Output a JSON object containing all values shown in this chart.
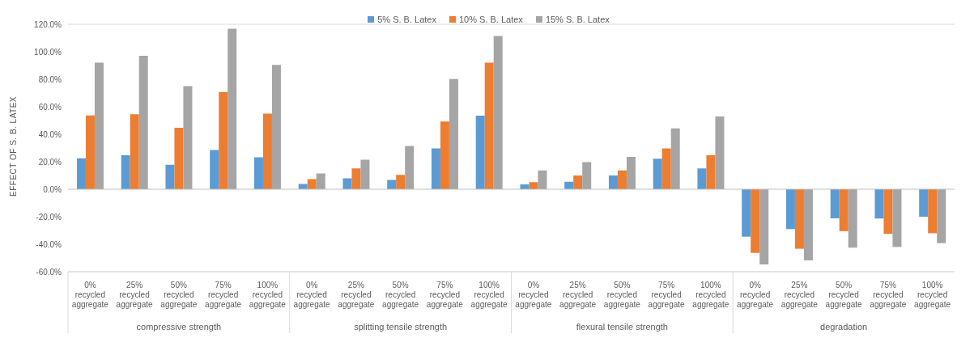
{
  "chart_data": {
    "type": "bar",
    "ylabel": "EFFECT OF S. B. LATEX",
    "categories": [
      "0% recycled aggregate",
      "25% recycled aggregate",
      "50% recycled aggregate",
      "75% recycled aggregate",
      "100% recycled aggregate",
      "0% recycled aggregate",
      "25% recycled aggregate",
      "50% recycled aggregate",
      "75% recycled aggregate",
      "100% recycled aggregate",
      "0% recycled aggregate",
      "25% recycled aggregate",
      "50% recycled aggregate",
      "75% recycled aggregate",
      "100% recycled aggregate",
      "0% recycled aggregate",
      "25% recycled aggregate",
      "50% recycled aggregate",
      "75% recycled aggregate",
      "100% recycled aggregate"
    ],
    "series": [
      {
        "name": "5% S. B. Latex",
        "color": "#5b9bd5",
        "values": [
          22.5,
          24.7,
          17.8,
          28.5,
          23.3,
          3.8,
          8,
          6.8,
          29.7,
          53.5,
          3.5,
          5.5,
          10,
          22.2,
          15.2,
          -34.5,
          -29,
          -21.2,
          -21.3,
          -20
        ]
      },
      {
        "name": "10% S. B. Latex",
        "color": "#ed7d31",
        "values": [
          53.7,
          54.5,
          44.7,
          70.7,
          55,
          7.3,
          15.2,
          10.5,
          49.2,
          92,
          5.2,
          10,
          13.7,
          29.7,
          24.7,
          -46.3,
          -43.3,
          -30.5,
          -32.5,
          -32
        ]
      },
      {
        "name": "15% S. B. Latex",
        "color": "#a5a5a5",
        "values": [
          92,
          97,
          75,
          116.7,
          90.5,
          11.5,
          21.5,
          31.5,
          80.2,
          111.5,
          13.7,
          19.7,
          23.5,
          44.3,
          53,
          -54.7,
          -51.7,
          -42.5,
          -42,
          -39.2
        ]
      }
    ],
    "annotations": [
      "compressive strength",
      "splitting tensile strength",
      "flexural tensile strength",
      "degradation"
    ],
    "ylim": [
      -60,
      120
    ],
    "yticks": [
      {
        "value": -60,
        "label": "-60.0%"
      },
      {
        "value": -40,
        "label": "-40.0%"
      },
      {
        "value": -20,
        "label": "-20.0%"
      },
      {
        "value": 0,
        "label": "0.0%"
      },
      {
        "value": 20,
        "label": "20.0%"
      },
      {
        "value": 40,
        "label": "40.0%"
      },
      {
        "value": 60,
        "label": "60.0%"
      },
      {
        "value": 80,
        "label": "80.0%"
      },
      {
        "value": 100,
        "label": "100.0%"
      },
      {
        "value": 120,
        "label": "120.0%"
      }
    ],
    "grid": "y",
    "legend": "top"
  }
}
